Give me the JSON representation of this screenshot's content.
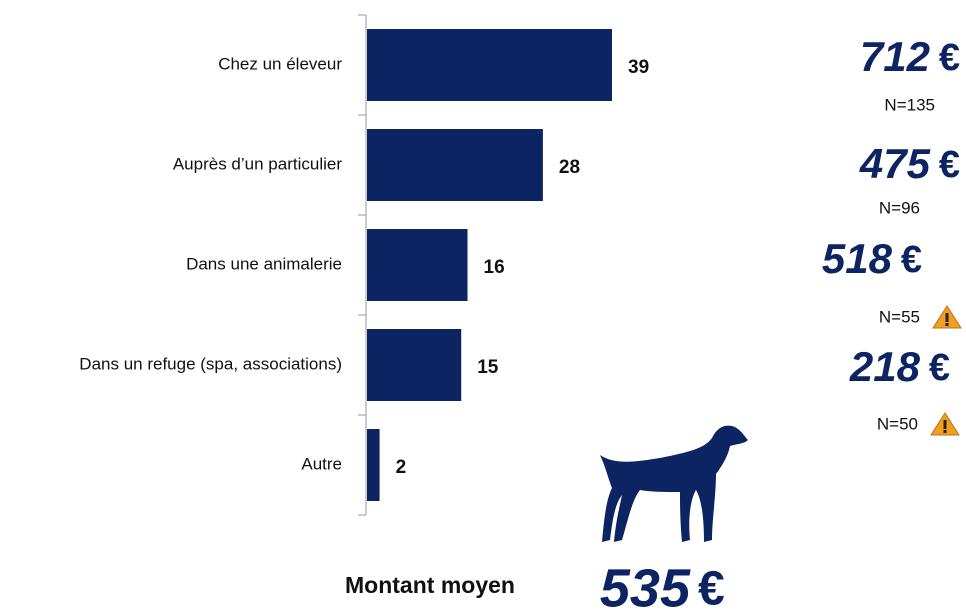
{
  "chart_data": {
    "type": "bar",
    "orientation": "horizontal",
    "categories": [
      "Chez un éleveur",
      "Auprès d’un particulier",
      "Dans une animalerie",
      "Dans un refuge (spa, associations)",
      "Autre"
    ],
    "values": [
      39,
      28,
      16,
      15,
      2
    ],
    "color": "#0d2463",
    "annotations": [
      {
        "amount": 712,
        "currency": "€",
        "n": "N=135",
        "warning": false
      },
      {
        "amount": 475,
        "currency": "€",
        "n": "N=96",
        "warning": false
      },
      {
        "amount": 518,
        "currency": "€",
        "n": "N=55",
        "warning": true
      },
      {
        "amount": 218,
        "currency": "€",
        "n": "N=50",
        "warning": true
      }
    ],
    "summary": {
      "label": "Montant moyen",
      "amount": 535,
      "currency": "€"
    }
  }
}
